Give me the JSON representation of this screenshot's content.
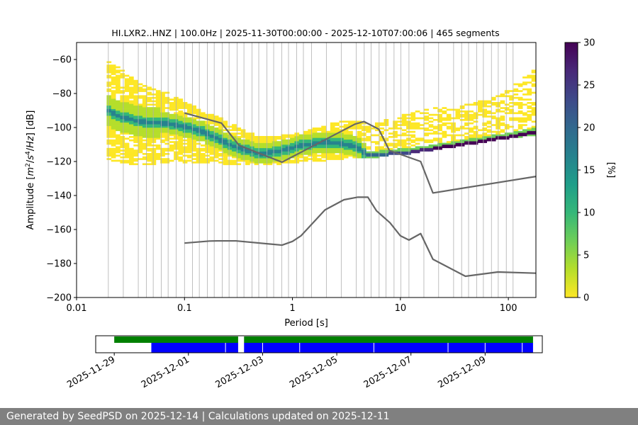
{
  "chart_data": [
    {
      "type": "heatmap",
      "title": "HI.LXR2..HNZ | 100.0Hz | 2025-11-30T00:00:00 - 2025-12-10T07:00:06 | 465 segments",
      "xlabel": "Period [s]",
      "ylabel_parts": [
        "Amplitude [",
        "m",
        "2",
        "/",
        "s",
        "4",
        "/",
        "Hz",
        "] [dB]"
      ],
      "xscale": "log",
      "xlim": [
        0.01,
        180
      ],
      "ylim": [
        -200,
        -50
      ],
      "xticks": [
        {
          "value": 0.01,
          "label": "0.01"
        },
        {
          "value": 0.1,
          "label": "0.1"
        },
        {
          "value": 1,
          "label": "1"
        },
        {
          "value": 10,
          "label": "10"
        },
        {
          "value": 100,
          "label": "100"
        }
      ],
      "yticks": [
        {
          "value": -60,
          "label": "−60"
        },
        {
          "value": -80,
          "label": "−80"
        },
        {
          "value": -100,
          "label": "−100"
        },
        {
          "value": -120,
          "label": "−120"
        },
        {
          "value": -140,
          "label": "−140"
        },
        {
          "value": -160,
          "label": "−160"
        },
        {
          "value": -180,
          "label": "−180"
        },
        {
          "value": -200,
          "label": "−200"
        }
      ],
      "grid": "vertical at period bins",
      "grid_periods": [
        0.0197,
        0.0271,
        0.0373,
        0.0443,
        0.0513,
        0.0609,
        0.0705,
        0.0837,
        0.1,
        0.1186,
        0.1371,
        0.1629,
        0.1884,
        0.2237,
        0.2587,
        0.3074,
        0.3552,
        0.4219,
        0.4874,
        0.5793,
        0.6697,
        0.7953,
        0.9193,
        1.0922,
        1.2627,
        1.5,
        2.06,
        2.83,
        3.89,
        4.62,
        5.35,
        6.35,
        7.35,
        8.73,
        10.1,
        12.0,
        16.5,
        22.6,
        31.1,
        36.9,
        42.8,
        50.8,
        58.7,
        69.7,
        80.6,
        95.7,
        110.6
      ],
      "colorbar": {
        "label": "[%]",
        "range": [
          0,
          30
        ],
        "ticks": [
          0,
          5,
          10,
          15,
          20,
          25,
          30
        ],
        "colormap": "viridis_r",
        "colors": [
          "#fde725",
          "#b5de2b",
          "#6ece58",
          "#35b779",
          "#1f9e89",
          "#26828e",
          "#31688e",
          "#3e4989",
          "#482878",
          "#440154"
        ]
      },
      "density_percentile_bands": [
        {
          "name": "outer_envelope",
          "x": [
            0.019,
            0.025,
            0.04,
            0.07,
            0.1,
            0.2,
            0.3,
            0.5,
            0.8,
            1.2,
            2,
            3,
            4,
            5,
            8,
            12,
            20,
            40,
            80,
            180
          ],
          "upper": [
            -62,
            -66,
            -76,
            -81,
            -86,
            -95,
            -100,
            -107,
            -106,
            -104,
            -100,
            -97,
            -97,
            -100,
            -96,
            -93,
            -90,
            -88,
            -83,
            -67
          ],
          "lower": [
            -118,
            -120,
            -122,
            -120,
            -120,
            -121,
            -122,
            -122,
            -121,
            -120,
            -119,
            -118,
            -118,
            -118,
            -116,
            -115,
            -113,
            -110,
            -107,
            -104
          ]
        },
        {
          "name": "mode",
          "x": [
            0.019,
            0.025,
            0.04,
            0.07,
            0.1,
            0.15,
            0.2,
            0.3,
            0.5,
            0.8,
            1.2,
            2,
            3,
            4,
            5,
            8,
            12,
            20,
            40,
            80,
            180
          ],
          "y": [
            -90,
            -94,
            -97,
            -98,
            -100,
            -103,
            -107,
            -112,
            -116,
            -114,
            -111,
            -109,
            -110,
            -112,
            -117,
            -116,
            -115,
            -113,
            -110,
            -107,
            -103
          ]
        }
      ],
      "series": [
        {
          "name": "",
          "color": "#666666",
          "x": [
            0.1,
            0.17,
            0.2,
            0.3,
            0.8,
            1.0,
            1.2,
            2,
            3,
            4,
            5,
            6,
            8,
            10,
            12,
            15.4,
            20,
            40,
            80,
            180
          ],
          "y": [
            -168,
            -166.8,
            -166.7,
            -166.7,
            -169.2,
            -167,
            -163.7,
            -148.5,
            -142.5,
            -141,
            -141,
            -149,
            -156,
            -163.7,
            -166.2,
            -162.4,
            -177.5,
            -187.5,
            -185,
            -185.7
          ]
        },
        {
          "name": "",
          "color": "#666666",
          "x": [
            0.1,
            0.22,
            0.32,
            0.8,
            3.8,
            4.6,
            6.3,
            7.9,
            15.4,
            20,
            180
          ],
          "y": [
            -91.5,
            -97.4,
            -110.5,
            -120.4,
            -98,
            -96.5,
            -101,
            -113.5,
            -120,
            -138.5,
            -128.8
          ]
        }
      ]
    },
    {
      "type": "timeline",
      "x_tick_labels": [
        "2025-11-29",
        "2025-12-01",
        "2025-12-03",
        "2025-12-05",
        "2025-12-07",
        "2025-12-09"
      ],
      "x_tick_dates": [
        "2025-11-29",
        "2025-12-01",
        "2025-12-03",
        "2025-12-05",
        "2025-12-07",
        "2025-12-09"
      ],
      "xlim": [
        "2025-11-28T12:00:00",
        "2025-12-10T13:00:00"
      ],
      "data_availability": {
        "color": "#008000",
        "intervals": [
          [
            "2025-11-29T00:00:00",
            "2025-12-02T08:10:00"
          ],
          [
            "2025-12-02T12:00:00",
            "2025-12-10T07:00:06"
          ]
        ]
      },
      "psd_segments": {
        "color": "#0000ff",
        "intervals": [
          [
            "2025-11-30T00:00:00",
            "2025-12-02T08:10:00"
          ],
          [
            "2025-12-02T12:00:00",
            "2025-12-10T07:00:06"
          ]
        ],
        "breaks": [
          "2025-12-02T00:00:00",
          "2025-12-02T09:40:00",
          "2025-12-03T00:00:00",
          "2025-12-04T00:00:00",
          "2025-12-06T00:00:00",
          "2025-12-08T00:00:00",
          "2025-12-09T00:00:00",
          "2025-12-10T00:00:00"
        ]
      }
    }
  ],
  "footer": {
    "text": "Generated by SeedPSD on 2025-12-14 | Calculations updated on 2025-12-11"
  }
}
